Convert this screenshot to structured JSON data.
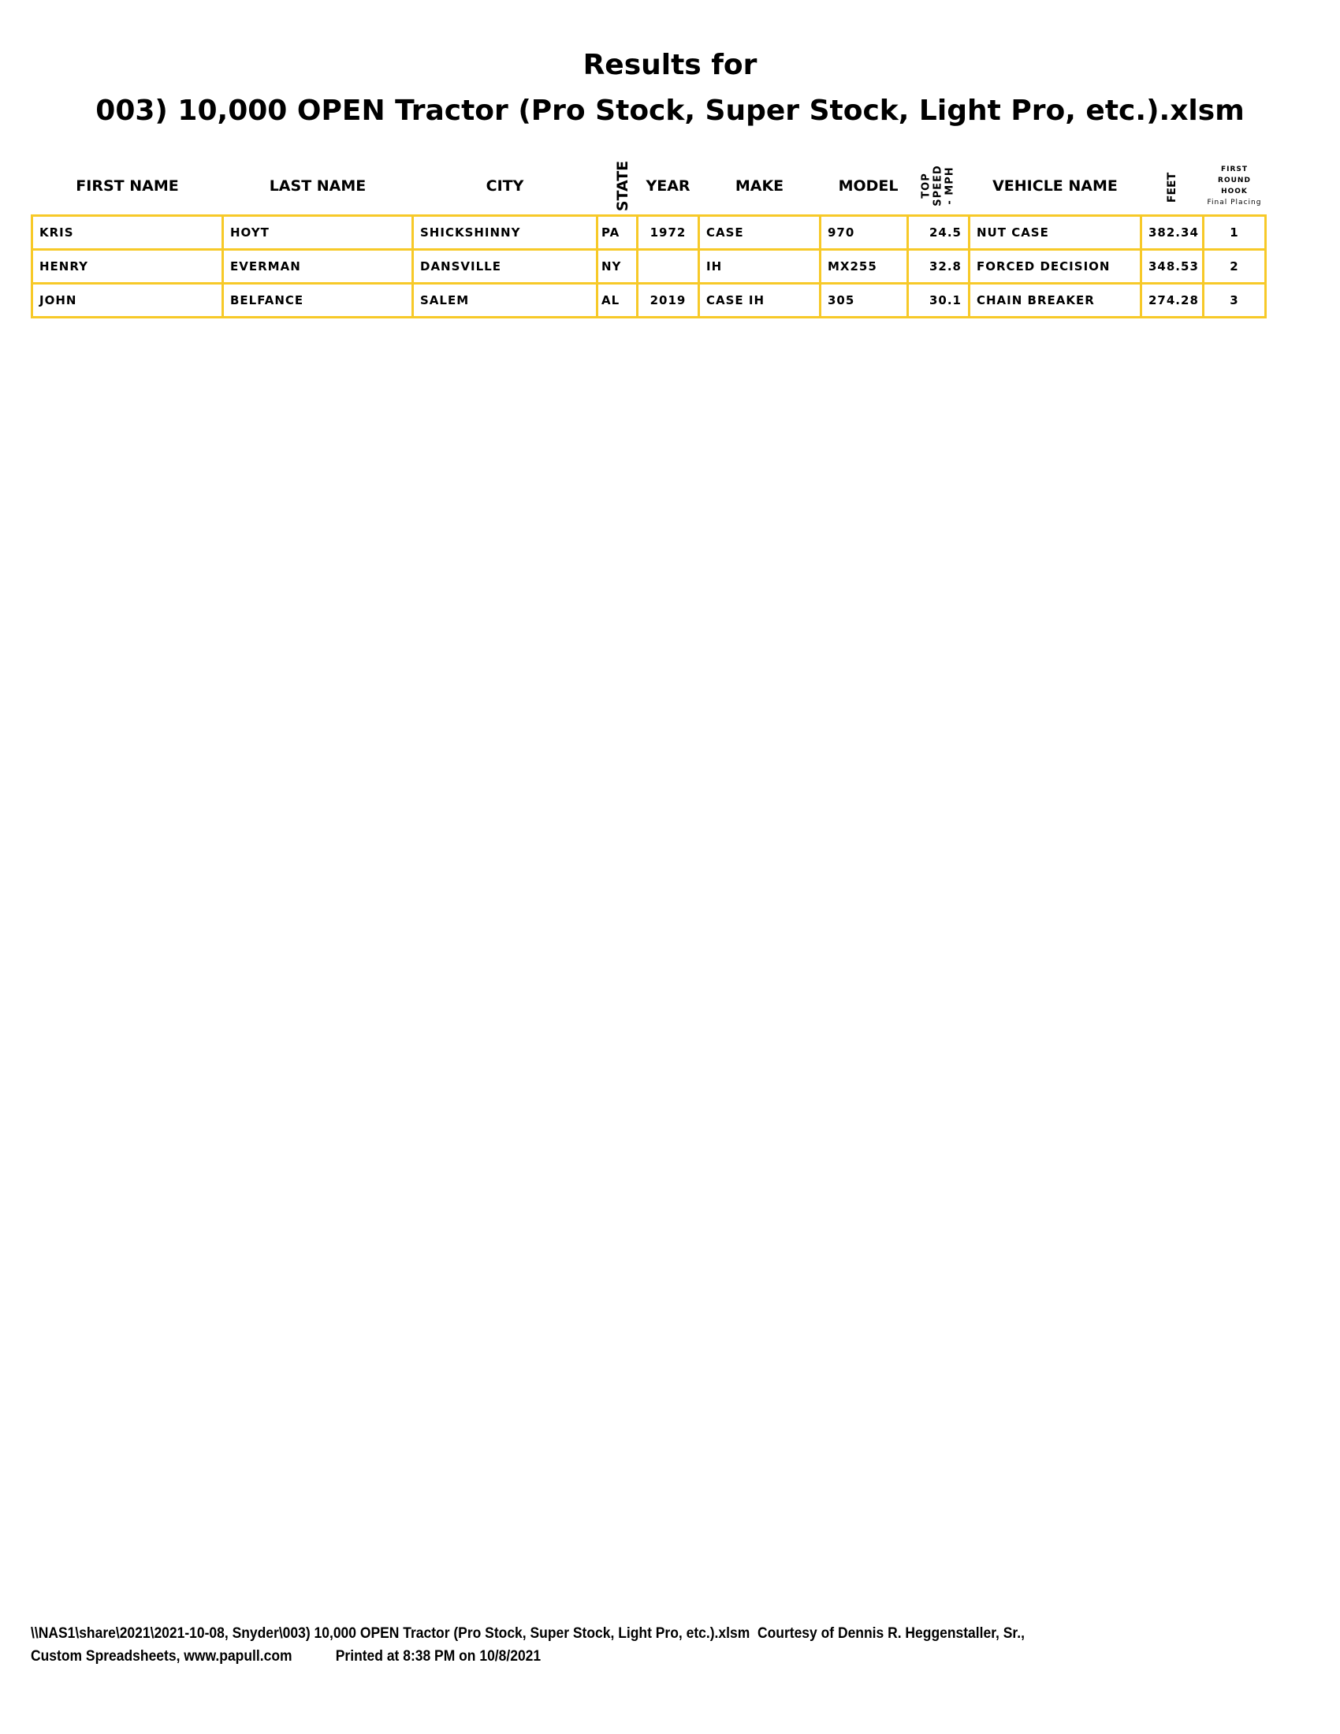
{
  "title": {
    "line1": "Results for",
    "line2": "003) 10,000 OPEN Tractor (Pro Stock, Super Stock, Light Pro, etc.).xlsm"
  },
  "table": {
    "headers": {
      "first_name": "FIRST NAME",
      "last_name": "LAST NAME",
      "city": "CITY",
      "state": "STATE",
      "year": "YEAR",
      "make": "MAKE",
      "model": "MODEL",
      "top_speed": [
        "TOP",
        "SPEED",
        "- MPH"
      ],
      "vehicle_name": "VEHICLE NAME",
      "feet": "FEET",
      "placing": [
        "FIRST ROUND",
        "HOOK",
        "Final Placing"
      ]
    },
    "rows": [
      {
        "first_name": "KRIS",
        "last_name": "HOYT",
        "city": "SHICKSHINNY",
        "state": "PA",
        "year": "1972",
        "make": "CASE",
        "model": "970",
        "top_speed": "24.5",
        "vehicle_name": "NUT CASE",
        "feet": "382.34",
        "placing": "1"
      },
      {
        "first_name": "HENRY",
        "last_name": "EVERMAN",
        "city": "DANSVILLE",
        "state": "NY",
        "year": "",
        "make": "IH",
        "model": "MX255",
        "top_speed": "32.8",
        "vehicle_name": "FORCED DECISION",
        "feet": "348.53",
        "placing": "2"
      },
      {
        "first_name": "JOHN",
        "last_name": "BELFANCE",
        "city": "SALEM",
        "state": "AL",
        "year": "2019",
        "make": "CASE IH",
        "model": "305",
        "top_speed": "30.1",
        "vehicle_name": "CHAIN BREAKER",
        "feet": "274.28",
        "placing": "3"
      }
    ]
  },
  "footer": {
    "line1": "\\\\NAS1\\share\\2021\\2021-10-08, Snyder\\003) 10,000 OPEN Tractor (Pro Stock, Super Stock, Light Pro, etc.).xlsm  Courtesy of Dennis R. Heggenstaller, Sr.,",
    "line2_left": "Custom Spreadsheets, www.papull.com",
    "line2_right": "Printed at 8:38 PM on 10/8/2021"
  },
  "colors": {
    "border": "#f7c928"
  }
}
